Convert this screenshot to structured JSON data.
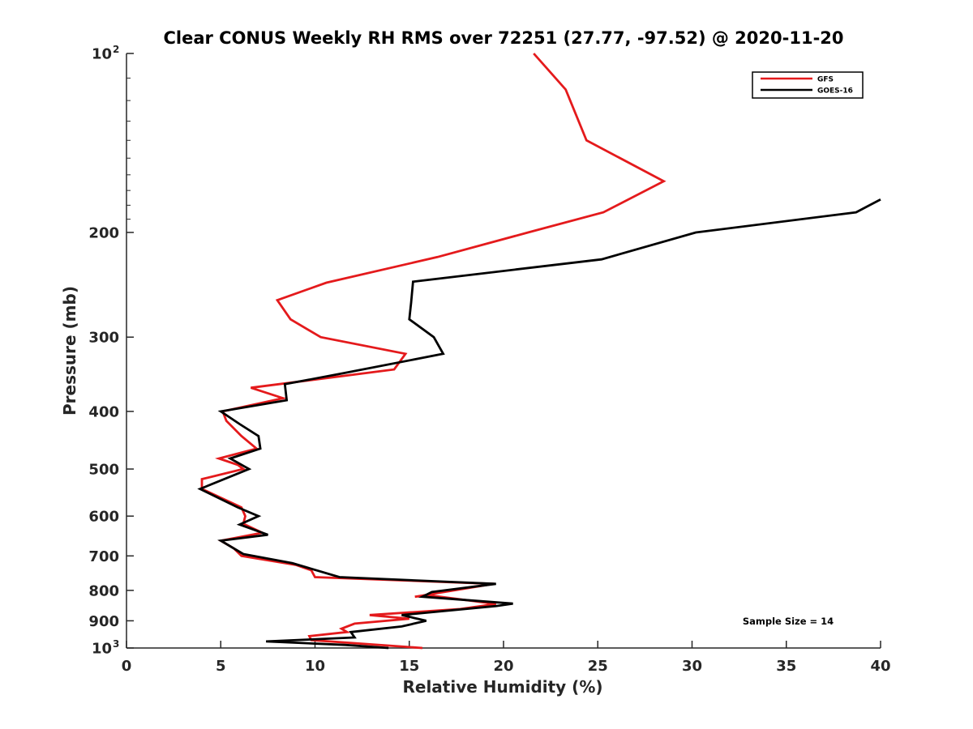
{
  "chart_data": {
    "type": "line",
    "title": "Clear CONUS Weekly RH RMS over 72251 (27.77, -97.52) @ 2020-11-20",
    "xlabel": "Relative Humidity (%)",
    "ylabel": "Pressure (mb)",
    "xlim": [
      0,
      40
    ],
    "ylim": [
      100,
      1000
    ],
    "y_scale": "log",
    "y_reversed": true,
    "x_ticks": [
      "0",
      "5",
      "10",
      "15",
      "20",
      "25",
      "30",
      "35",
      "40"
    ],
    "y_ticks": [
      {
        "value": 100,
        "base": "10",
        "exp": "2"
      },
      {
        "value": 200,
        "label": "200"
      },
      {
        "value": 300,
        "label": "300"
      },
      {
        "value": 400,
        "label": "400"
      },
      {
        "value": 500,
        "label": "500"
      },
      {
        "value": 600,
        "label": "600"
      },
      {
        "value": 700,
        "label": "700"
      },
      {
        "value": 800,
        "label": "800"
      },
      {
        "value": 900,
        "label": "900"
      },
      {
        "value": 1000,
        "base": "10",
        "exp": "3"
      }
    ],
    "legend_position": "top-right",
    "annotation": "Sample Size = 14",
    "series": [
      {
        "name": "GFS",
        "color": "#e41a1c",
        "points": [
          [
            21.6,
            100
          ],
          [
            23.3,
            115
          ],
          [
            24.4,
            140
          ],
          [
            28.5,
            164
          ],
          [
            25.3,
            185
          ],
          [
            21.3,
            200
          ],
          [
            16.5,
            220
          ],
          [
            10.6,
            243
          ],
          [
            8.0,
            260
          ],
          [
            8.7,
            280
          ],
          [
            10.3,
            300
          ],
          [
            14.8,
            320
          ],
          [
            14.2,
            340
          ],
          [
            6.6,
            365
          ],
          [
            8.3,
            380
          ],
          [
            5.1,
            400
          ],
          [
            5.3,
            415
          ],
          [
            6.1,
            440
          ],
          [
            6.9,
            462
          ],
          [
            4.9,
            480
          ],
          [
            5.9,
            492
          ],
          [
            6.2,
            500
          ],
          [
            4.0,
            520
          ],
          [
            4.0,
            540
          ],
          [
            6.1,
            580
          ],
          [
            6.3,
            600
          ],
          [
            6.2,
            618
          ],
          [
            7.2,
            640
          ],
          [
            5.0,
            660
          ],
          [
            5.7,
            680
          ],
          [
            6.1,
            700
          ],
          [
            9.0,
            725
          ],
          [
            9.8,
            740
          ],
          [
            10.0,
            760
          ],
          [
            19.5,
            780
          ],
          [
            15.3,
            820
          ],
          [
            16.0,
            815
          ],
          [
            19.6,
            843
          ],
          [
            17.7,
            860
          ],
          [
            12.9,
            880
          ],
          [
            15.0,
            893
          ],
          [
            12.1,
            910
          ],
          [
            11.4,
            928
          ],
          [
            11.7,
            940
          ],
          [
            9.7,
            955
          ],
          [
            9.8,
            970
          ],
          [
            15.7,
            1000
          ]
        ]
      },
      {
        "name": "GOES-16",
        "color": "#000000",
        "points": [
          [
            40.0,
            176
          ],
          [
            38.7,
            185
          ],
          [
            30.2,
            200
          ],
          [
            25.2,
            222
          ],
          [
            15.2,
            242
          ],
          [
            15.1,
            262
          ],
          [
            15.0,
            280
          ],
          [
            16.3,
            300
          ],
          [
            16.8,
            320
          ],
          [
            11.5,
            345
          ],
          [
            8.4,
            360
          ],
          [
            8.5,
            383
          ],
          [
            5.0,
            400
          ],
          [
            6.0,
            420
          ],
          [
            7.0,
            440
          ],
          [
            7.1,
            462
          ],
          [
            5.5,
            480
          ],
          [
            6.5,
            500
          ],
          [
            3.9,
            540
          ],
          [
            5.9,
            580
          ],
          [
            7.0,
            600
          ],
          [
            6.0,
            620
          ],
          [
            7.5,
            645
          ],
          [
            5.0,
            660
          ],
          [
            6.2,
            695
          ],
          [
            8.8,
            720
          ],
          [
            11.3,
            760
          ],
          [
            19.6,
            780
          ],
          [
            16.2,
            805
          ],
          [
            15.7,
            820
          ],
          [
            20.5,
            842
          ],
          [
            19.6,
            850
          ],
          [
            14.6,
            880
          ],
          [
            15.9,
            900
          ],
          [
            14.6,
            920
          ],
          [
            11.9,
            940
          ],
          [
            12.1,
            960
          ],
          [
            7.4,
            975
          ],
          [
            11.6,
            988
          ],
          [
            13.9,
            1000
          ]
        ]
      }
    ]
  }
}
